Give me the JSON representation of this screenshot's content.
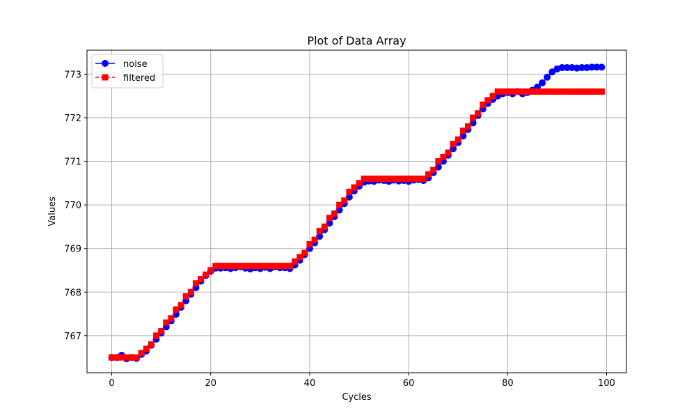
{
  "chart_data": {
    "type": "line",
    "title": "Plot of Data Array",
    "xlabel": "Cycles",
    "ylabel": "Values",
    "xlim": [
      -5,
      104
    ],
    "ylim": [
      766.15,
      773.55
    ],
    "x_ticks": [
      0,
      20,
      40,
      60,
      80,
      100
    ],
    "y_ticks": [
      767,
      768,
      769,
      770,
      771,
      772,
      773
    ],
    "grid": true,
    "legend_position": "top-left",
    "x": [
      0,
      1,
      2,
      3,
      4,
      5,
      6,
      7,
      8,
      9,
      10,
      11,
      12,
      13,
      14,
      15,
      16,
      17,
      18,
      19,
      20,
      21,
      22,
      23,
      24,
      25,
      26,
      27,
      28,
      29,
      30,
      31,
      32,
      33,
      34,
      35,
      36,
      37,
      38,
      39,
      40,
      41,
      42,
      43,
      44,
      45,
      46,
      47,
      48,
      49,
      50,
      51,
      52,
      53,
      54,
      55,
      56,
      57,
      58,
      59,
      60,
      61,
      62,
      63,
      64,
      65,
      66,
      67,
      68,
      69,
      70,
      71,
      72,
      73,
      74,
      75,
      76,
      77,
      78,
      79,
      80,
      81,
      82,
      83,
      84,
      85,
      86,
      87,
      88,
      89,
      90,
      91,
      92,
      93,
      94,
      95,
      96,
      97,
      98,
      99
    ],
    "series": [
      {
        "name": "noise",
        "color": "#0000ff",
        "marker": "circle",
        "linestyle": "solid",
        "values": [
          766.5,
          766.5,
          766.55,
          766.47,
          766.5,
          766.48,
          766.57,
          766.65,
          766.78,
          766.92,
          767.06,
          767.2,
          767.34,
          767.49,
          767.65,
          767.8,
          767.95,
          768.1,
          768.25,
          768.38,
          768.48,
          768.55,
          768.55,
          768.56,
          768.54,
          768.56,
          768.58,
          768.55,
          768.53,
          768.56,
          768.54,
          768.57,
          768.54,
          768.58,
          768.56,
          768.56,
          768.54,
          768.62,
          768.73,
          768.86,
          769.0,
          769.13,
          769.28,
          769.43,
          769.58,
          769.73,
          769.88,
          770.03,
          770.18,
          770.32,
          770.43,
          770.52,
          770.55,
          770.54,
          770.57,
          770.56,
          770.54,
          770.57,
          770.55,
          770.56,
          770.54,
          770.57,
          770.58,
          770.56,
          770.62,
          770.74,
          770.87,
          771.0,
          771.14,
          771.29,
          771.43,
          771.58,
          771.73,
          771.88,
          772.05,
          772.2,
          772.33,
          772.42,
          772.5,
          772.55,
          772.58,
          772.55,
          772.6,
          772.55,
          772.58,
          772.63,
          772.7,
          772.8,
          772.93,
          773.05,
          773.12,
          773.15,
          773.15,
          773.15,
          773.14,
          773.15,
          773.15,
          773.16,
          773.16,
          773.16
        ]
      },
      {
        "name": "filtered",
        "color": "#ff0000",
        "marker": "square",
        "linestyle": "dashed",
        "values": [
          766.5,
          766.5,
          766.5,
          766.5,
          766.5,
          766.5,
          766.6,
          766.7,
          766.8,
          767.0,
          767.1,
          767.3,
          767.4,
          767.6,
          767.7,
          767.9,
          768.0,
          768.2,
          768.3,
          768.4,
          768.5,
          768.6,
          768.6,
          768.6,
          768.6,
          768.6,
          768.6,
          768.6,
          768.6,
          768.6,
          768.6,
          768.6,
          768.6,
          768.6,
          768.6,
          768.6,
          768.6,
          768.7,
          768.8,
          768.9,
          769.1,
          769.2,
          769.4,
          769.5,
          769.7,
          769.8,
          770.0,
          770.1,
          770.3,
          770.4,
          770.5,
          770.6,
          770.6,
          770.6,
          770.6,
          770.6,
          770.6,
          770.6,
          770.6,
          770.6,
          770.6,
          770.6,
          770.6,
          770.6,
          770.7,
          770.8,
          771.0,
          771.1,
          771.2,
          771.4,
          771.5,
          771.7,
          771.8,
          772.0,
          772.1,
          772.3,
          772.4,
          772.5,
          772.6,
          772.6,
          772.6,
          772.6,
          772.6,
          772.6,
          772.6,
          772.6,
          772.6,
          772.6,
          772.6,
          772.6,
          772.6,
          772.6,
          772.6,
          772.6,
          772.6,
          772.6,
          772.6,
          772.6,
          772.6,
          772.6
        ]
      }
    ]
  }
}
